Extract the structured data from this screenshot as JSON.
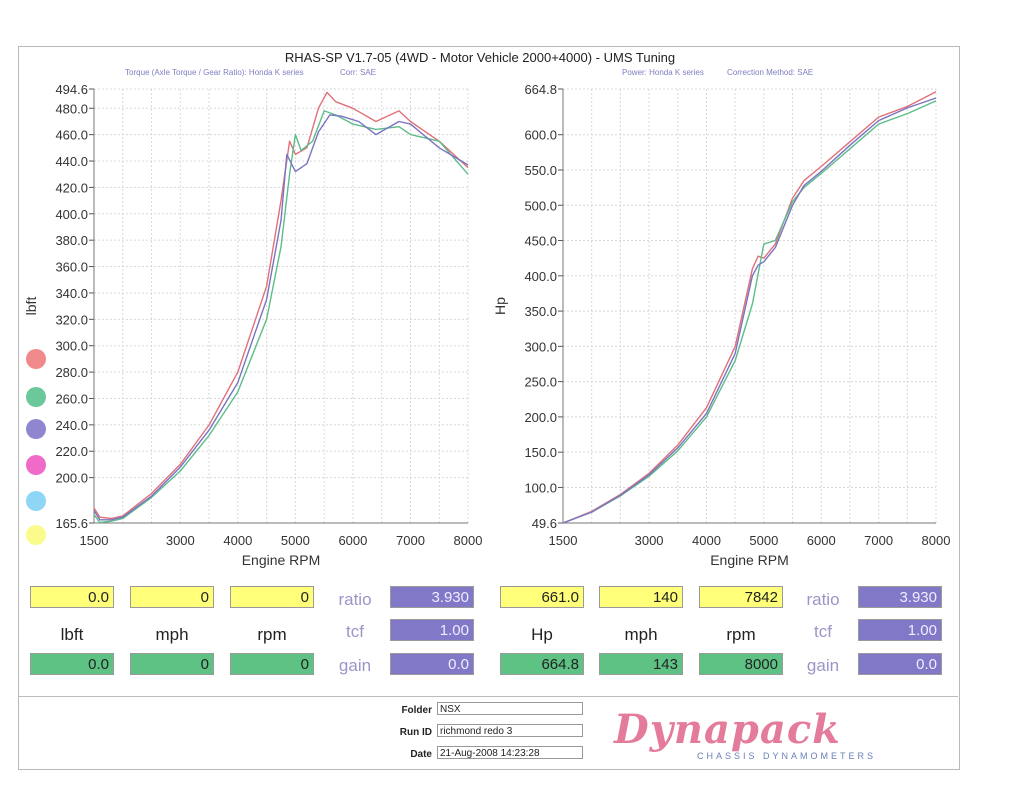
{
  "header": {
    "title": "RHAS-SP V1.7-05    (4WD - Motor Vehicle 2000+4000) - UMS Tuning",
    "left_sub1": "Torque (Axle Torque / Gear Ratio): Honda K series",
    "left_sub2": "Corr: SAE",
    "right_sub1": "Power: Honda K series",
    "right_sub2": "Correction Method: SAE"
  },
  "chart_data": [
    {
      "type": "line",
      "ylabel": "lbft",
      "xlabel": "Engine RPM",
      "xlim": [
        1500,
        8000
      ],
      "ylim": [
        165.6,
        494.6
      ],
      "x_ticks": [
        "1500",
        "3000",
        "4000",
        "5000",
        "6000",
        "7000",
        "8000"
      ],
      "y_ticks": [
        "494.6",
        "480.0",
        "460.0",
        "440.0",
        "420.0",
        "400.0",
        "380.0",
        "360.0",
        "340.0",
        "320.0",
        "300.0",
        "280.0",
        "260.0",
        "240.0",
        "220.0",
        "200.0",
        "165.6"
      ],
      "y_tick_values": [
        494.6,
        480,
        460,
        440,
        420,
        400,
        380,
        360,
        340,
        320,
        300,
        280,
        260,
        240,
        220,
        200,
        165.6
      ],
      "series": [
        {
          "color": "#e0707a",
          "points": [
            [
              1500,
              177
            ],
            [
              1600,
              170
            ],
            [
              1800,
              169
            ],
            [
              2000,
              171
            ],
            [
              2500,
              188
            ],
            [
              3000,
              210
            ],
            [
              3500,
              240
            ],
            [
              4000,
              280
            ],
            [
              4500,
              345
            ],
            [
              4750,
              410
            ],
            [
              4900,
              455
            ],
            [
              5000,
              445
            ],
            [
              5200,
              450
            ],
            [
              5400,
              480
            ],
            [
              5550,
              492
            ],
            [
              5700,
              485
            ],
            [
              6000,
              480
            ],
            [
              6400,
              470
            ],
            [
              6800,
              478
            ],
            [
              7000,
              470
            ],
            [
              7500,
              455
            ],
            [
              8000,
              435
            ]
          ]
        },
        {
          "color": "#5cbd8a",
          "points": [
            [
              1500,
              172
            ],
            [
              1600,
              166
            ],
            [
              1800,
              167
            ],
            [
              2000,
              169
            ],
            [
              2500,
              185
            ],
            [
              3000,
              205
            ],
            [
              3500,
              232
            ],
            [
              4000,
              265
            ],
            [
              4500,
              320
            ],
            [
              4750,
              375
            ],
            [
              4900,
              430
            ],
            [
              5000,
              460
            ],
            [
              5100,
              448
            ],
            [
              5300,
              455
            ],
            [
              5500,
              478
            ],
            [
              5700,
              475
            ],
            [
              6000,
              468
            ],
            [
              6400,
              464
            ],
            [
              6800,
              466
            ],
            [
              7000,
              460
            ],
            [
              7500,
              455
            ],
            [
              8000,
              430
            ]
          ]
        },
        {
          "color": "#7a74c0",
          "points": [
            [
              1500,
              175
            ],
            [
              1600,
              168
            ],
            [
              1800,
              168
            ],
            [
              2000,
              170
            ],
            [
              2500,
              186
            ],
            [
              3000,
              208
            ],
            [
              3500,
              236
            ],
            [
              4000,
              272
            ],
            [
              4500,
              335
            ],
            [
              4750,
              395
            ],
            [
              4850,
              445
            ],
            [
              5000,
              432
            ],
            [
              5200,
              438
            ],
            [
              5400,
              462
            ],
            [
              5600,
              475
            ],
            [
              5800,
              474
            ],
            [
              6100,
              470
            ],
            [
              6400,
              460
            ],
            [
              6800,
              470
            ],
            [
              7000,
              468
            ],
            [
              7500,
              450
            ],
            [
              8000,
              437
            ]
          ]
        }
      ]
    },
    {
      "type": "line",
      "ylabel": "Hp",
      "xlabel": "Engine RPM",
      "xlim": [
        1500,
        8000
      ],
      "ylim": [
        49.6,
        664.8
      ],
      "x_ticks": [
        "1500",
        "3000",
        "4000",
        "5000",
        "6000",
        "7000",
        "8000"
      ],
      "y_ticks": [
        "664.8",
        "600.0",
        "550.0",
        "500.0",
        "450.0",
        "400.0",
        "350.0",
        "300.0",
        "250.0",
        "200.0",
        "150.0",
        "100.0",
        "49.6"
      ],
      "y_tick_values": [
        664.8,
        600,
        550,
        500,
        450,
        400,
        350,
        300,
        250,
        200,
        150,
        100,
        49.6
      ],
      "series": [
        {
          "color": "#e0707a",
          "points": [
            [
              1500,
              49.6
            ],
            [
              2000,
              66
            ],
            [
              2500,
              90
            ],
            [
              3000,
              120
            ],
            [
              3500,
              160
            ],
            [
              4000,
              213
            ],
            [
              4500,
              300
            ],
            [
              4800,
              410
            ],
            [
              4900,
              428
            ],
            [
              5000,
              425
            ],
            [
              5200,
              445
            ],
            [
              5500,
              510
            ],
            [
              5700,
              535
            ],
            [
              6000,
              555
            ],
            [
              6500,
              590
            ],
            [
              7000,
              625
            ],
            [
              7500,
              640
            ],
            [
              8000,
              661
            ]
          ]
        },
        {
          "color": "#5cbd8a",
          "points": [
            [
              1500,
              49.6
            ],
            [
              2000,
              65
            ],
            [
              2500,
              88
            ],
            [
              3000,
              116
            ],
            [
              3500,
              152
            ],
            [
              4000,
              200
            ],
            [
              4500,
              280
            ],
            [
              4800,
              360
            ],
            [
              5000,
              445
            ],
            [
              5200,
              450
            ],
            [
              5500,
              505
            ],
            [
              5700,
              525
            ],
            [
              6000,
              545
            ],
            [
              6500,
              580
            ],
            [
              7000,
              615
            ],
            [
              7500,
              630
            ],
            [
              8000,
              648
            ]
          ]
        },
        {
          "color": "#7a74c0",
          "points": [
            [
              1500,
              49.6
            ],
            [
              2000,
              65
            ],
            [
              2500,
              89
            ],
            [
              3000,
              118
            ],
            [
              3500,
              156
            ],
            [
              4000,
              205
            ],
            [
              4500,
              290
            ],
            [
              4800,
              400
            ],
            [
              4900,
              415
            ],
            [
              5000,
              420
            ],
            [
              5200,
              440
            ],
            [
              5500,
              500
            ],
            [
              5700,
              528
            ],
            [
              6000,
              548
            ],
            [
              6500,
              585
            ],
            [
              7000,
              620
            ],
            [
              7500,
              638
            ],
            [
              8000,
              652
            ]
          ]
        }
      ]
    }
  ],
  "legend_dots": [
    "#f08a8a",
    "#6cc89a",
    "#8f86d0",
    "#f06ac8",
    "#8fd6f6",
    "#fbfb8c"
  ],
  "panel": {
    "left": {
      "top": [
        "0.0",
        "0",
        "0"
      ],
      "labels": [
        "lbft",
        "mph",
        "rpm"
      ],
      "bottom": [
        "0.0",
        "0",
        "0"
      ]
    },
    "right": {
      "top": [
        "661.0",
        "140",
        "7842"
      ],
      "labels": [
        "Hp",
        "mph",
        "rpm"
      ],
      "bottom": [
        "664.8",
        "143",
        "8000"
      ]
    },
    "ratio_label": "ratio",
    "tcf_label": "tcf",
    "gain_label": "gain",
    "ratio_left": "3.930",
    "tcf_left": "1.00",
    "gain_left": "0.0",
    "ratio_right": "3.930",
    "tcf_right": "1.00",
    "gain_right": "0.0"
  },
  "footer": {
    "folder_label": "Folder",
    "folder": "NSX",
    "run_label": "Run ID",
    "run": "richmond redo 3",
    "date_label": "Date",
    "date": "21-Aug-2008  14:23:28",
    "logo": "Dynapack",
    "logo_sub": "CHASSIS  DYNAMOMETERS"
  }
}
